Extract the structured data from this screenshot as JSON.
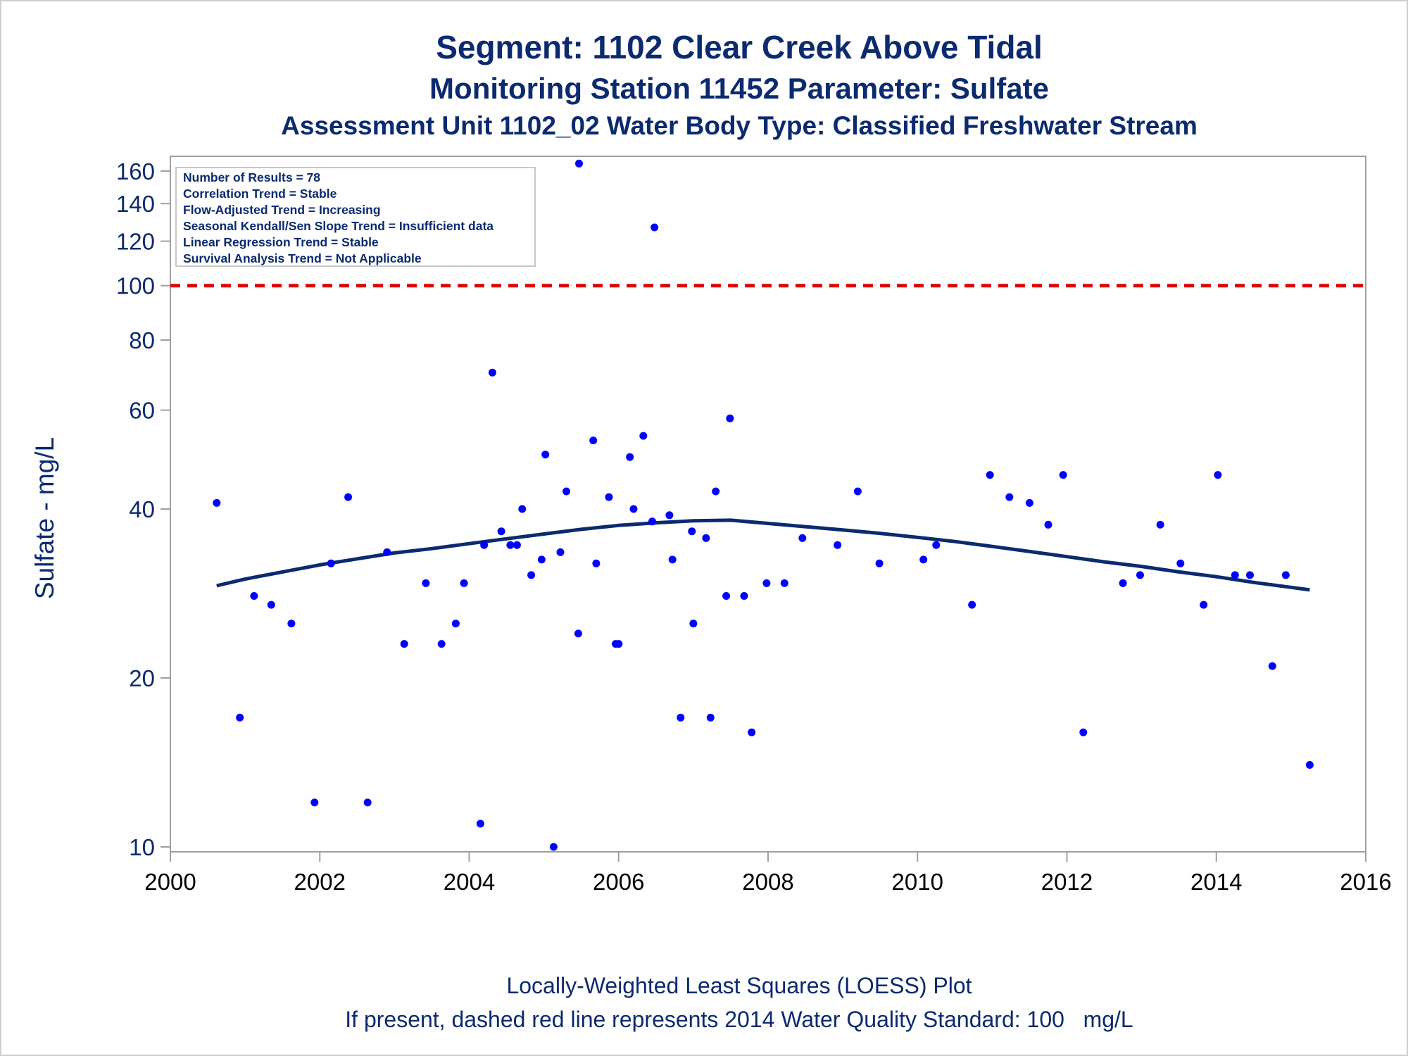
{
  "titles": {
    "line1": "Segment: 1102  Clear Creek Above Tidal",
    "line2": "Monitoring Station 11452 Parameter: Sulfate",
    "line3": "Assessment Unit 1102_02   Water Body Type: Classified Freshwater Stream"
  },
  "footer": {
    "line1": "Locally-Weighted Least Squares (LOESS) Plot",
    "line2": "If present, dashed red line represents 2014 Water Quality Standard: 100   mg/L"
  },
  "stats_box": [
    "Number of Results = 78",
    "Correlation Trend = Stable",
    "Flow-Adjusted Trend = Increasing",
    "Seasonal Kendall/Sen Slope Trend = Insufficient data",
    "Linear Regression Trend = Stable",
    "Survival Analysis Trend = Not Applicable"
  ],
  "colors": {
    "points": "#0000ff",
    "loess": "#0b2a6f",
    "standard_line": "#e00000",
    "text": "#0b2a6f",
    "frame": "#a0a0a0"
  },
  "chart_data": {
    "type": "scatter",
    "ylabel": "Sulfate - mg/L",
    "xlabel": "",
    "y_scale": "log",
    "xlim": [
      2000,
      2016
    ],
    "ylim": [
      9.8,
      170
    ],
    "x_ticks": [
      2000,
      2002,
      2004,
      2006,
      2008,
      2010,
      2012,
      2014,
      2016
    ],
    "y_ticks": [
      10,
      20,
      40,
      60,
      80,
      100,
      120,
      140,
      160
    ],
    "standard_line": {
      "value": 100,
      "style": "dashed"
    },
    "points": [
      {
        "x": 2000.62,
        "y": 41
      },
      {
        "x": 2000.93,
        "y": 17.0
      },
      {
        "x": 2001.12,
        "y": 28.0
      },
      {
        "x": 2001.35,
        "y": 27.0
      },
      {
        "x": 2001.62,
        "y": 25.0
      },
      {
        "x": 2001.93,
        "y": 12.0
      },
      {
        "x": 2002.15,
        "y": 32.0
      },
      {
        "x": 2002.38,
        "y": 42.0
      },
      {
        "x": 2002.64,
        "y": 12.0
      },
      {
        "x": 2002.9,
        "y": 33.5
      },
      {
        "x": 2003.13,
        "y": 23.0
      },
      {
        "x": 2003.42,
        "y": 29.5
      },
      {
        "x": 2003.63,
        "y": 23.0
      },
      {
        "x": 2003.82,
        "y": 25.0
      },
      {
        "x": 2003.93,
        "y": 29.5
      },
      {
        "x": 2004.15,
        "y": 11.0
      },
      {
        "x": 2004.2,
        "y": 34.5
      },
      {
        "x": 2004.31,
        "y": 70.0
      },
      {
        "x": 2004.43,
        "y": 36.5
      },
      {
        "x": 2004.55,
        "y": 34.5
      },
      {
        "x": 2004.64,
        "y": 34.5
      },
      {
        "x": 2004.71,
        "y": 40.0
      },
      {
        "x": 2004.83,
        "y": 30.5
      },
      {
        "x": 2004.97,
        "y": 32.5
      },
      {
        "x": 2005.02,
        "y": 50.0
      },
      {
        "x": 2005.13,
        "y": 10.0
      },
      {
        "x": 2005.22,
        "y": 33.5
      },
      {
        "x": 2005.3,
        "y": 43.0
      },
      {
        "x": 2005.46,
        "y": 24.0
      },
      {
        "x": 2005.47,
        "y": 165.0
      },
      {
        "x": 2005.66,
        "y": 53.0
      },
      {
        "x": 2005.7,
        "y": 32.0
      },
      {
        "x": 2005.87,
        "y": 42.0
      },
      {
        "x": 2005.96,
        "y": 23.0
      },
      {
        "x": 2006.0,
        "y": 23.0
      },
      {
        "x": 2006.15,
        "y": 49.5
      },
      {
        "x": 2006.2,
        "y": 40.0
      },
      {
        "x": 2006.33,
        "y": 54.0
      },
      {
        "x": 2006.45,
        "y": 38.0
      },
      {
        "x": 2006.48,
        "y": 127.0
      },
      {
        "x": 2006.68,
        "y": 39.0
      },
      {
        "x": 2006.72,
        "y": 32.5
      },
      {
        "x": 2006.83,
        "y": 17.0
      },
      {
        "x": 2006.98,
        "y": 36.5
      },
      {
        "x": 2007.0,
        "y": 25.0
      },
      {
        "x": 2007.17,
        "y": 35.5
      },
      {
        "x": 2007.23,
        "y": 17.0
      },
      {
        "x": 2007.3,
        "y": 43.0
      },
      {
        "x": 2007.44,
        "y": 28.0
      },
      {
        "x": 2007.49,
        "y": 58.0
      },
      {
        "x": 2007.68,
        "y": 28.0
      },
      {
        "x": 2007.78,
        "y": 16.0
      },
      {
        "x": 2007.98,
        "y": 29.5
      },
      {
        "x": 2008.22,
        "y": 29.5
      },
      {
        "x": 2008.46,
        "y": 35.5
      },
      {
        "x": 2008.93,
        "y": 34.5
      },
      {
        "x": 2009.2,
        "y": 43.0
      },
      {
        "x": 2009.49,
        "y": 32.0
      },
      {
        "x": 2010.08,
        "y": 32.5
      },
      {
        "x": 2010.25,
        "y": 34.5
      },
      {
        "x": 2010.73,
        "y": 27.0
      },
      {
        "x": 2010.97,
        "y": 46.0
      },
      {
        "x": 2011.23,
        "y": 42.0
      },
      {
        "x": 2011.5,
        "y": 41.0
      },
      {
        "x": 2011.75,
        "y": 37.5
      },
      {
        "x": 2011.95,
        "y": 46.0
      },
      {
        "x": 2012.22,
        "y": 16.0
      },
      {
        "x": 2012.75,
        "y": 29.5
      },
      {
        "x": 2012.98,
        "y": 30.5
      },
      {
        "x": 2013.25,
        "y": 37.5
      },
      {
        "x": 2013.52,
        "y": 32.0
      },
      {
        "x": 2013.83,
        "y": 27.0
      },
      {
        "x": 2014.02,
        "y": 46.0
      },
      {
        "x": 2014.25,
        "y": 30.5
      },
      {
        "x": 2014.45,
        "y": 30.5
      },
      {
        "x": 2014.75,
        "y": 21.0
      },
      {
        "x": 2014.93,
        "y": 30.5
      },
      {
        "x": 2015.25,
        "y": 14.0
      }
    ],
    "loess": [
      {
        "x": 2000.62,
        "y": 29.2
      },
      {
        "x": 2001.0,
        "y": 30.0
      },
      {
        "x": 2001.5,
        "y": 30.9
      },
      {
        "x": 2002.0,
        "y": 31.8
      },
      {
        "x": 2002.5,
        "y": 32.6
      },
      {
        "x": 2003.0,
        "y": 33.4
      },
      {
        "x": 2003.5,
        "y": 34.0
      },
      {
        "x": 2004.0,
        "y": 34.7
      },
      {
        "x": 2004.5,
        "y": 35.4
      },
      {
        "x": 2005.0,
        "y": 36.1
      },
      {
        "x": 2005.5,
        "y": 36.8
      },
      {
        "x": 2006.0,
        "y": 37.4
      },
      {
        "x": 2006.5,
        "y": 37.8
      },
      {
        "x": 2007.0,
        "y": 38.1
      },
      {
        "x": 2007.5,
        "y": 38.2
      },
      {
        "x": 2008.0,
        "y": 37.7
      },
      {
        "x": 2008.5,
        "y": 37.2
      },
      {
        "x": 2009.0,
        "y": 36.7
      },
      {
        "x": 2009.5,
        "y": 36.2
      },
      {
        "x": 2010.0,
        "y": 35.6
      },
      {
        "x": 2010.5,
        "y": 35.0
      },
      {
        "x": 2011.0,
        "y": 34.3
      },
      {
        "x": 2011.5,
        "y": 33.6
      },
      {
        "x": 2012.0,
        "y": 32.9
      },
      {
        "x": 2012.5,
        "y": 32.2
      },
      {
        "x": 2013.0,
        "y": 31.6
      },
      {
        "x": 2013.5,
        "y": 30.9
      },
      {
        "x": 2014.0,
        "y": 30.3
      },
      {
        "x": 2014.5,
        "y": 29.6
      },
      {
        "x": 2015.0,
        "y": 29.0
      },
      {
        "x": 2015.25,
        "y": 28.7
      }
    ]
  }
}
